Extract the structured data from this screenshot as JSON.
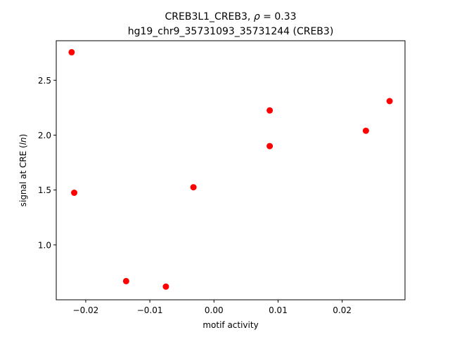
{
  "chart_data": {
    "type": "scatter",
    "title_line1_prefix": "CREB3L1_CREB3, ",
    "title_line1_rho": "ρ",
    "title_line1_suffix": " = 0.33",
    "title_line2": "hg19_chr9_35731093_35731244 (CREB3)",
    "xlabel": "motif activity",
    "ylabel_prefix": "signal at CRE (",
    "ylabel_italic": "ln",
    "ylabel_suffix": ")",
    "xlim": [
      -0.0246,
      0.0298
    ],
    "ylim": [
      0.5,
      2.86
    ],
    "xticks": [
      {
        "value": -0.02,
        "label": "−0.02"
      },
      {
        "value": -0.01,
        "label": "−0.01"
      },
      {
        "value": 0.0,
        "label": "0.00"
      },
      {
        "value": 0.01,
        "label": "0.01"
      },
      {
        "value": 0.02,
        "label": "0.02"
      }
    ],
    "yticks": [
      {
        "value": 1.0,
        "label": "1.0"
      },
      {
        "value": 1.5,
        "label": "1.5"
      },
      {
        "value": 2.0,
        "label": "2.0"
      },
      {
        "value": 2.5,
        "label": "2.5"
      }
    ],
    "marker_color": "#ff0000",
    "grid": false,
    "points": [
      {
        "x": -0.0222,
        "y": 2.755
      },
      {
        "x": -0.0218,
        "y": 1.475
      },
      {
        "x": -0.0137,
        "y": 0.67
      },
      {
        "x": -0.0075,
        "y": 0.62
      },
      {
        "x": -0.0032,
        "y": 1.525
      },
      {
        "x": 0.0087,
        "y": 2.225
      },
      {
        "x": 0.0087,
        "y": 1.9
      },
      {
        "x": 0.0237,
        "y": 2.04
      },
      {
        "x": 0.0274,
        "y": 2.31
      }
    ]
  }
}
